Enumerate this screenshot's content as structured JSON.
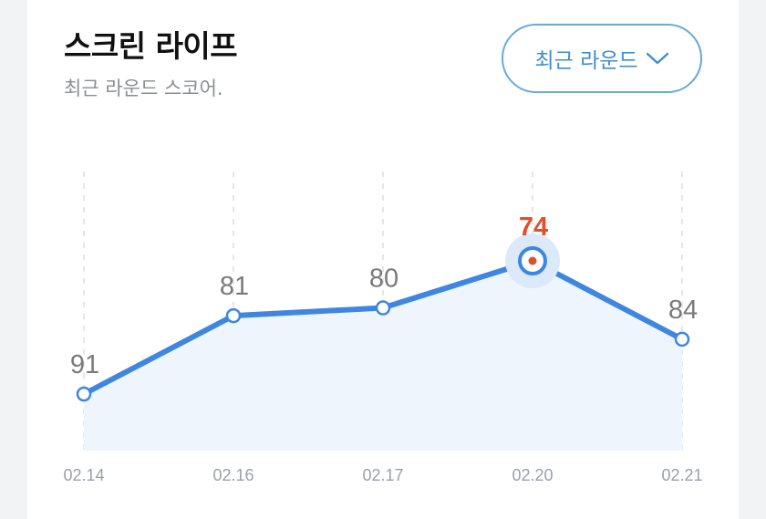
{
  "header": {
    "title": "스크린 라이프",
    "subtitle": "최근 라운드 스코어."
  },
  "filter": {
    "label": "최근 라운드",
    "icon": "chevron-down-icon"
  },
  "colors": {
    "line": "#3f86e0",
    "area": "#eef5fd",
    "highlight": "#e0512b",
    "label": "#7a7a7a",
    "tick": "#9aa0a8"
  },
  "chart_data": {
    "type": "line",
    "categories": [
      "02.14",
      "02.16",
      "02.17",
      "02.20",
      "02.21"
    ],
    "values": [
      91,
      81,
      80,
      74,
      84
    ],
    "highlight_index": 3,
    "y_inverted": true,
    "grid": "vertical-dashed"
  }
}
